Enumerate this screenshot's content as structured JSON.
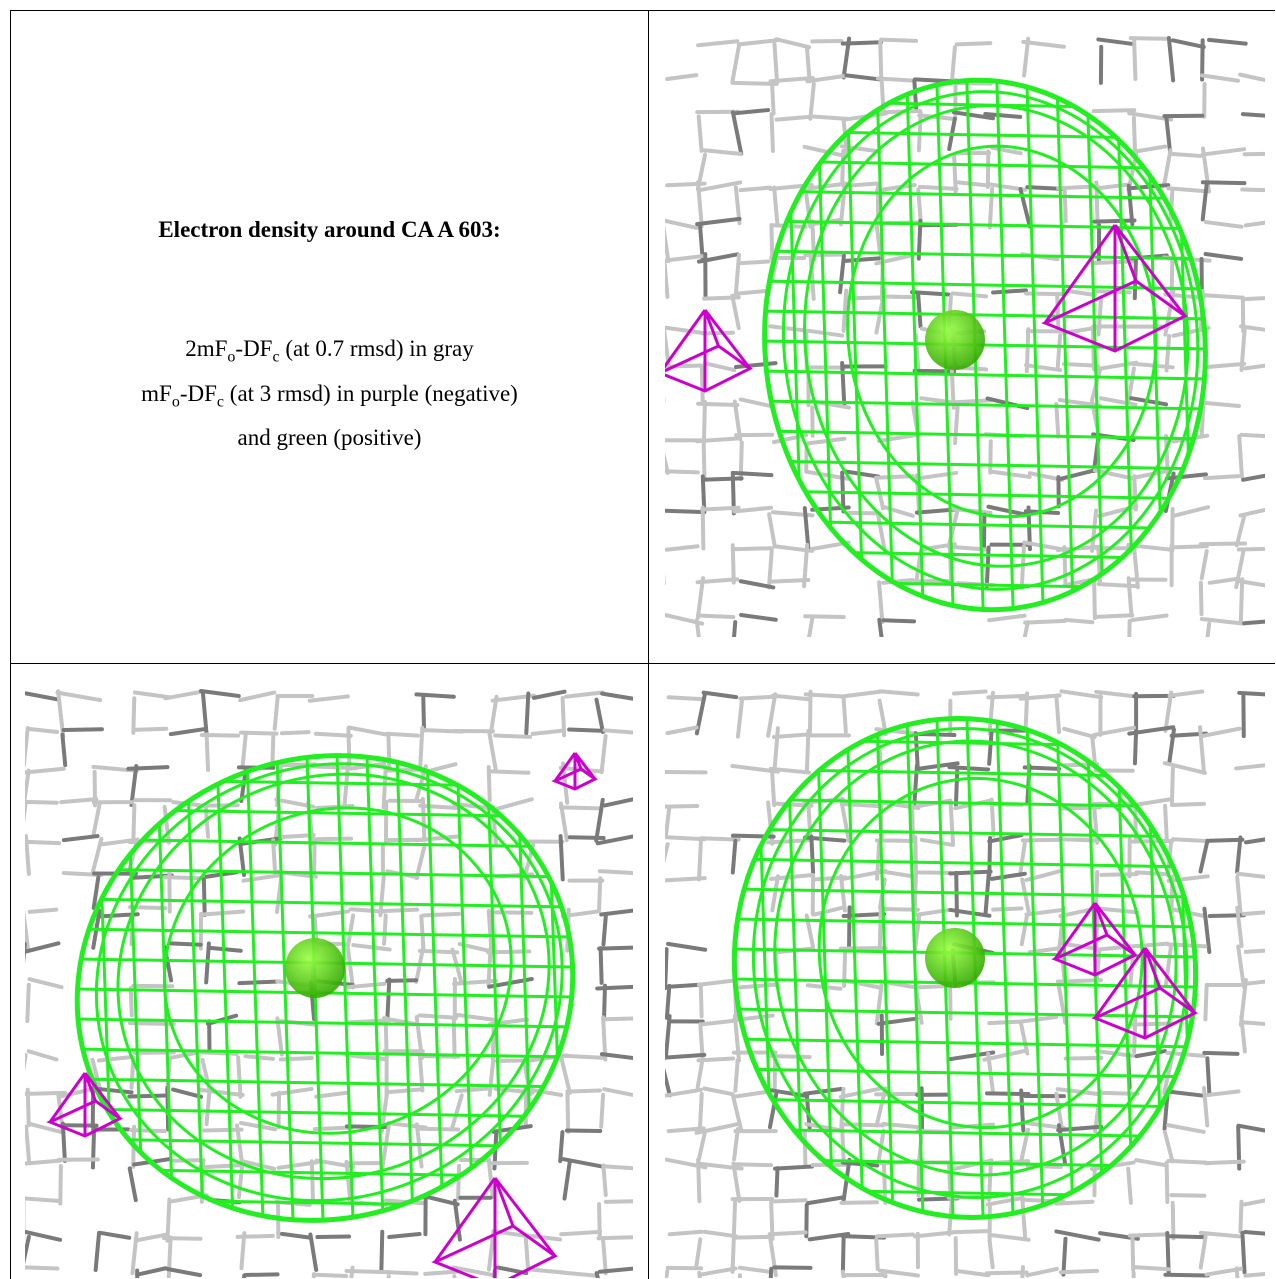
{
  "title": "Electron density around CA A 603:",
  "legend": [
    [
      "2mF",
      {
        "sub": "o"
      },
      "-DF",
      {
        "sub": "c"
      },
      " (at 0.7 rmsd) in gray"
    ],
    [
      "mF",
      {
        "sub": "o"
      },
      "-DF",
      {
        "sub": "c"
      },
      " (at 3 rmsd) in purple (negative)"
    ],
    [
      "and green (positive)"
    ]
  ]
}
